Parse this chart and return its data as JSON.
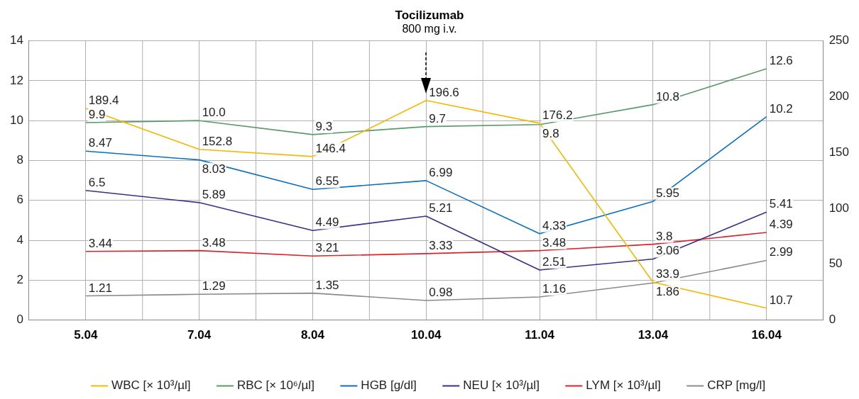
{
  "chart_data": {
    "type": "line",
    "title": "Tocilizumab",
    "subtitle": "800 mg i.v.",
    "categories": [
      "5.04",
      "7.04",
      "8.04",
      "10.04",
      "11.04",
      "13.04",
      "16.04"
    ],
    "series": [
      {
        "name": "WBC [× 10³/µl]",
        "color": "#f5b800",
        "axis": "y2",
        "values": [
          189.4,
          152.8,
          146.4,
          196.6,
          176.2,
          33.9,
          10.7
        ],
        "value_labels": [
          "189.4",
          "152.8",
          "146.4",
          "196.6",
          "176.2",
          "33.9",
          "10.7"
        ]
      },
      {
        "name": "RBC [× 10⁶/µl]",
        "color": "#5a9a6a",
        "values": [
          9.9,
          10.0,
          9.3,
          9.7,
          9.8,
          10.8,
          12.6
        ],
        "value_labels": [
          "9.9",
          "10.0",
          "9.3",
          "9.7",
          "9.8",
          "10.8",
          "12.6"
        ]
      },
      {
        "name": "HGB [g/dl]",
        "color": "#0a6fc2",
        "values": [
          8.47,
          8.03,
          6.55,
          6.99,
          4.33,
          5.95,
          10.2
        ],
        "value_labels": [
          "8.47",
          "8.03",
          "6.55",
          "6.99",
          "4.33",
          "5.95",
          "10.2"
        ]
      },
      {
        "name": "NEU [× 10³/µl]",
        "color": "#3a2f8a",
        "values": [
          6.5,
          5.89,
          4.49,
          5.21,
          2.51,
          3.06,
          5.41
        ],
        "value_labels": [
          "6.5",
          "5.89",
          "4.49",
          "5.21",
          "2.51",
          "3.06",
          "5.41"
        ]
      },
      {
        "name": "LYM [× 10³/µl]",
        "color": "#d8232a",
        "values": [
          3.44,
          3.48,
          3.21,
          3.33,
          3.48,
          3.8,
          4.39
        ],
        "value_labels": [
          "3.44",
          "3.48",
          "3.21",
          "3.33",
          "3.48",
          "3.8",
          "4.39"
        ]
      },
      {
        "name": "CRP [mg/l]",
        "color": "#8a8a8a",
        "values": [
          1.21,
          1.29,
          1.35,
          0.98,
          1.16,
          1.86,
          2.99
        ],
        "value_labels": [
          "1.21",
          "1.29",
          "1.35",
          "0.98",
          "1.16",
          "1.86",
          "2.99"
        ]
      }
    ],
    "ylim": [
      0,
      14
    ],
    "yticks": [
      0,
      2,
      4,
      6,
      8,
      10,
      12,
      14
    ],
    "y2lim": [
      0,
      250
    ],
    "y2ticks": [
      0,
      50,
      100,
      150,
      200,
      250
    ],
    "grid": true,
    "legend": "bottom",
    "marker": "none",
    "line_style": "solid"
  }
}
